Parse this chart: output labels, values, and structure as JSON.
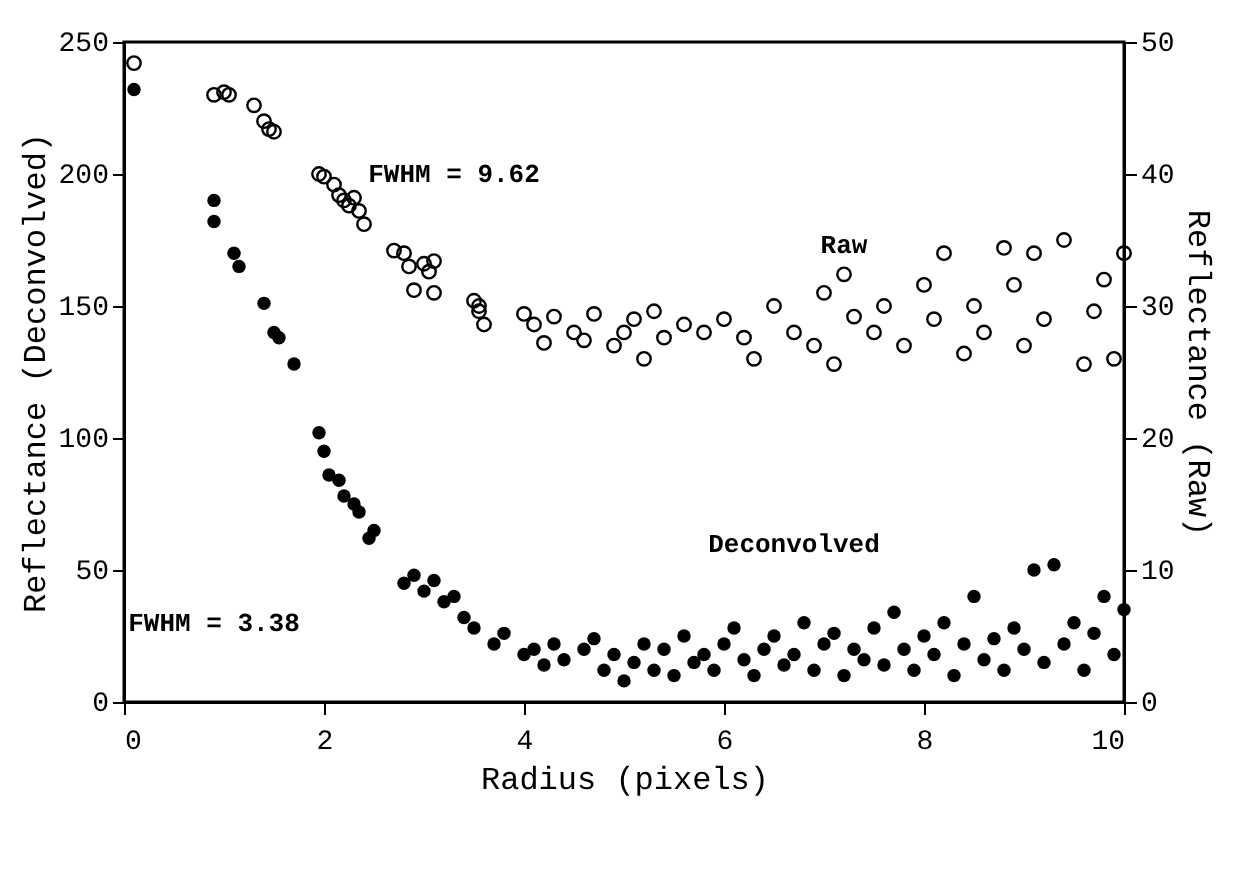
{
  "chart_data": {
    "type": "scatter",
    "xlabel": "Radius (pixels)",
    "ylabel": "Reflectance (Deconvolved)",
    "y2label": "Reflectance (Raw)",
    "xlim": [
      0,
      10
    ],
    "xticks": [
      0,
      2,
      4,
      6,
      8,
      10
    ],
    "ylim": [
      0,
      250
    ],
    "yticks": [
      0,
      50,
      100,
      150,
      200,
      250
    ],
    "y2lim": [
      0,
      50
    ],
    "y2ticks": [
      0,
      10,
      20,
      30,
      40,
      50
    ],
    "marker": "circle",
    "grid": false,
    "annotations": [
      "FWHM = 9.62",
      "Raw",
      "Deconvolved",
      "FWHM = 3.38"
    ],
    "series": [
      {
        "axis": "y2",
        "color": "#000000",
        "x": [
          0.1,
          0.9,
          1.0,
          1.05,
          1.3,
          1.4,
          1.45,
          1.5,
          1.95,
          2.0,
          2.1,
          2.15,
          2.2,
          2.25,
          2.3,
          2.35,
          2.4,
          2.7,
          2.8,
          2.85,
          3.0,
          3.05,
          3.1,
          2.9,
          3.1,
          3.5,
          3.55,
          3.6,
          3.55,
          4.0,
          4.1,
          4.2,
          4.3,
          4.5,
          4.6,
          4.7,
          4.9,
          5.0,
          5.1,
          5.2,
          5.3,
          5.4,
          5.6,
          5.8,
          6.0,
          6.2,
          6.3,
          6.5,
          6.7,
          6.9,
          7.0,
          7.1,
          7.2,
          7.3,
          7.5,
          7.6,
          7.8,
          8.0,
          8.1,
          8.2,
          8.4,
          8.5,
          8.6,
          8.8,
          8.9,
          9.0,
          9.1,
          9.2,
          9.4,
          9.6,
          9.7,
          9.8,
          9.9,
          10.0
        ],
        "values": [
          48.4,
          46,
          46.2,
          46,
          45.2,
          44,
          43.4,
          43.2,
          40,
          39.8,
          39.2,
          38.4,
          38,
          37.6,
          38.2,
          37.2,
          36.2,
          34.2,
          34,
          33,
          33.2,
          32.6,
          33.4,
          31.2,
          31,
          30.4,
          29.6,
          28.6,
          30,
          29.4,
          28.6,
          27.2,
          29.2,
          28,
          27.4,
          29.4,
          27,
          28,
          29,
          26,
          29.6,
          27.6,
          28.6,
          28,
          29,
          27.6,
          26,
          30,
          28,
          27,
          31,
          25.6,
          32.4,
          29.2,
          28,
          30,
          27,
          31.6,
          29,
          34,
          26.4,
          30,
          28,
          34.4,
          31.6,
          27,
          34,
          29,
          35,
          25.6,
          29.6,
          32,
          26,
          34
        ]
      },
      {
        "color": "#000000",
        "x": [
          0.1,
          0.9,
          0.9,
          1.1,
          1.15,
          1.4,
          1.5,
          1.55,
          1.7,
          1.95,
          2.0,
          2.05,
          2.15,
          2.2,
          2.3,
          2.35,
          2.45,
          2.5,
          2.8,
          2.9,
          3.0,
          3.1,
          3.2,
          3.3,
          3.4,
          3.5,
          3.7,
          3.8,
          4.0,
          4.1,
          4.2,
          4.3,
          4.4,
          4.6,
          4.7,
          4.8,
          4.9,
          5.0,
          5.1,
          5.2,
          5.3,
          5.4,
          5.5,
          5.6,
          5.7,
          5.8,
          5.9,
          6.0,
          6.1,
          6.2,
          6.3,
          6.4,
          6.5,
          6.6,
          6.7,
          6.8,
          6.9,
          7.0,
          7.1,
          7.2,
          7.3,
          7.4,
          7.5,
          7.6,
          7.7,
          7.8,
          7.9,
          8.0,
          8.1,
          8.2,
          8.3,
          8.4,
          8.5,
          8.6,
          8.7,
          8.8,
          8.9,
          9.0,
          9.1,
          9.2,
          9.3,
          9.4,
          9.5,
          9.6,
          9.7,
          9.8,
          9.9,
          10.0
        ],
        "values": [
          232,
          190,
          182,
          170,
          165,
          151,
          140,
          138,
          128,
          102,
          95,
          86,
          84,
          78,
          75,
          72,
          62,
          65,
          45,
          48,
          42,
          46,
          38,
          40,
          32,
          28,
          22,
          26,
          18,
          20,
          14,
          22,
          16,
          20,
          24,
          12,
          18,
          8,
          15,
          22,
          12,
          20,
          10,
          25,
          15,
          18,
          12,
          22,
          28,
          16,
          10,
          20,
          25,
          14,
          18,
          30,
          12,
          22,
          26,
          10,
          20,
          16,
          28,
          14,
          34,
          20,
          12,
          25,
          18,
          30,
          10,
          22,
          40,
          16,
          24,
          12,
          28,
          20,
          50,
          15,
          52,
          22,
          30,
          12,
          26,
          40,
          18,
          35
        ]
      }
    ]
  }
}
